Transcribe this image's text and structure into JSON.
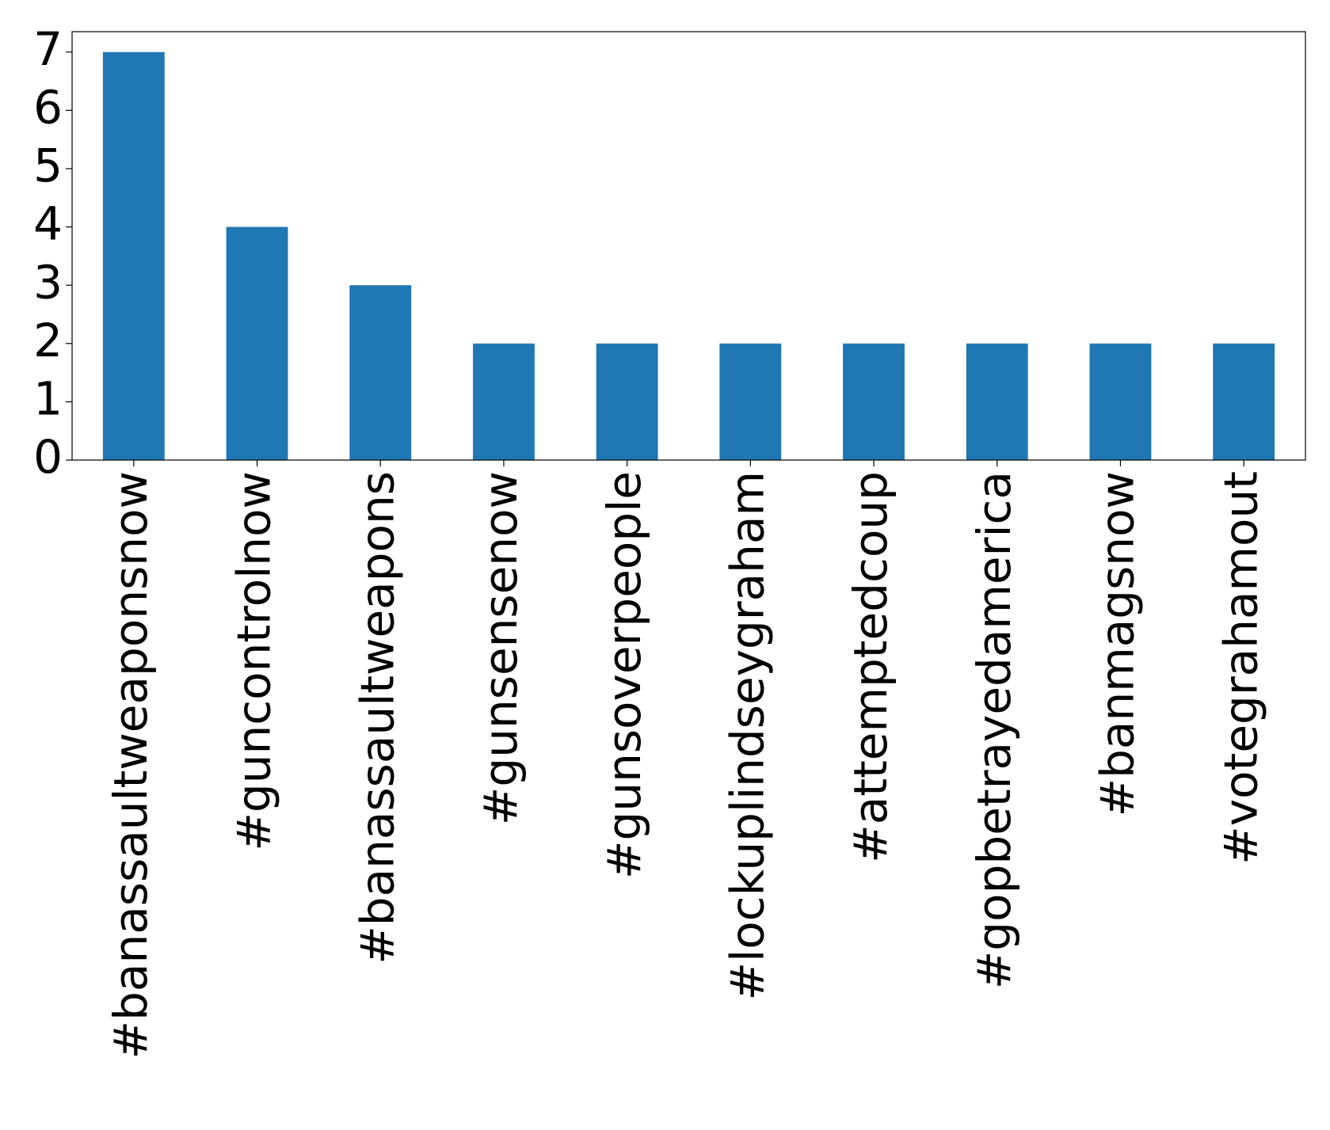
{
  "chart_data": {
    "type": "bar",
    "categories": [
      "#banassaultweaponsnow",
      "#guncontrolnow",
      "#banassaultweapons",
      "#gunsensenow",
      "#gunsoverpeople",
      "#lockuplindseygraham",
      "#attemptedcoup",
      "#gopbetrayedamerica",
      "#banmagsnow",
      "#votegrahamout"
    ],
    "values": [
      7,
      4,
      3,
      2,
      2,
      2,
      2,
      2,
      2,
      2
    ],
    "color": "#1f77b4",
    "ylim": [
      0,
      7.35
    ],
    "yticks": [
      0,
      1,
      2,
      3,
      4,
      5,
      6,
      7
    ],
    "grid": false
  }
}
